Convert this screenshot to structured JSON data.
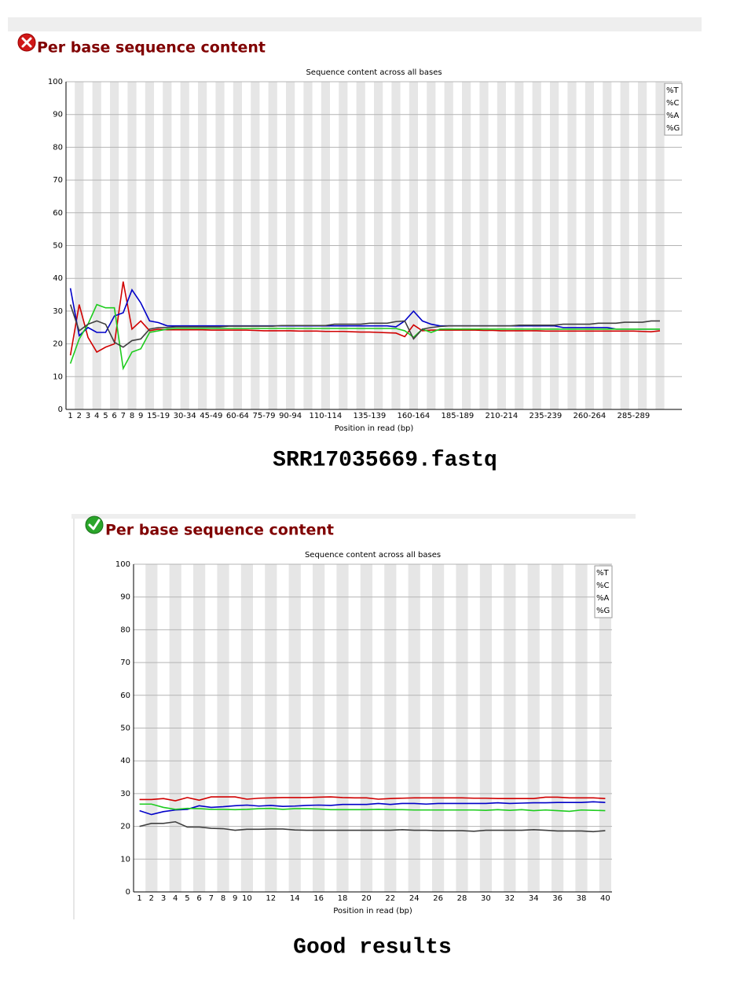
{
  "sections": [
    {
      "heading": "Per base sequence content",
      "caption": "SRR17035669.fastq"
    },
    {
      "heading": "Per base sequence content",
      "caption": "Good results"
    }
  ],
  "chart_data": [
    {
      "type": "line",
      "title": "Sequence content across all bases",
      "x_label": "Position in read (bp)",
      "categories": [
        "1",
        "2",
        "3",
        "4",
        "5",
        "6",
        "7",
        "8",
        "9",
        null,
        "15-19",
        null,
        null,
        "30-34",
        null,
        null,
        "45-49",
        null,
        null,
        "60-64",
        null,
        null,
        "75-79",
        null,
        null,
        "90-94",
        null,
        null,
        null,
        "110-114",
        null,
        null,
        null,
        null,
        "135-139",
        null,
        null,
        null,
        null,
        "160-164",
        null,
        null,
        null,
        null,
        "185-189",
        null,
        null,
        null,
        null,
        "210-214",
        null,
        null,
        null,
        null,
        "235-239",
        null,
        null,
        null,
        null,
        "260-264",
        null,
        null,
        null,
        null,
        "285-289",
        null,
        null,
        null
      ],
      "series": [
        {
          "name": "%T",
          "color": "#d00000",
          "values": [
            16.5,
            32,
            22,
            17.5,
            19,
            20,
            39,
            24.5,
            27,
            24,
            24.5,
            24.3,
            24.3,
            24.3,
            24.3,
            24.3,
            24.2,
            24.2,
            24.2,
            24.2,
            24.2,
            24.1,
            24,
            24,
            24,
            24,
            23.9,
            23.9,
            23.9,
            23.8,
            23.8,
            23.8,
            23.7,
            23.6,
            23.6,
            23.5,
            23.4,
            23.3,
            22.2,
            25.8,
            24,
            24.2,
            24.2,
            24.2,
            24.2,
            24.2,
            24.2,
            24.1,
            24.1,
            24,
            24,
            24,
            24,
            24,
            23.9,
            23.9,
            23.9,
            23.9,
            23.9,
            23.9,
            23.9,
            23.9,
            23.9,
            23.9,
            23.9,
            23.8,
            23.7,
            24
          ]
        },
        {
          "name": "%C",
          "color": "#0000c8",
          "values": [
            37,
            22.5,
            25,
            23.5,
            23.5,
            28.5,
            29.5,
            36.5,
            32.5,
            27,
            26.5,
            25.5,
            25.5,
            25.5,
            25.5,
            25.5,
            25.5,
            25.5,
            25.5,
            25.5,
            25.5,
            25.5,
            25.5,
            25.5,
            25.5,
            25.5,
            25.5,
            25.5,
            25.5,
            25.5,
            25.5,
            25.5,
            25.5,
            25.5,
            25.5,
            25.5,
            25.5,
            25.2,
            27,
            30,
            27,
            26,
            25.5,
            25.5,
            25.5,
            25.5,
            25.5,
            25.5,
            25.5,
            25.5,
            25.5,
            25.5,
            25.5,
            25.5,
            25.5,
            25.5,
            25,
            25,
            25,
            25,
            25,
            25,
            24.5,
            24.5,
            24.5,
            24.5,
            24.5,
            24.5
          ]
        },
        {
          "name": "%A",
          "color": "#1ecc1e",
          "values": [
            14,
            21.5,
            26,
            32,
            31,
            31,
            12.5,
            17.5,
            18.5,
            23.5,
            24,
            24.5,
            24.7,
            24.7,
            24.7,
            24.7,
            24.7,
            24.7,
            24.7,
            24.7,
            24.7,
            24.7,
            24.7,
            24.7,
            24.7,
            24.7,
            24.7,
            24.7,
            24.7,
            24.7,
            24.7,
            24.7,
            24.7,
            24.7,
            24.7,
            24.7,
            24.7,
            24.7,
            24,
            22,
            24.5,
            23.5,
            24.5,
            24.5,
            24.5,
            24.5,
            24.5,
            24.5,
            24.5,
            24.5,
            24.5,
            24.5,
            24.5,
            24.5,
            24.5,
            24.5,
            24.5,
            24.5,
            24.5,
            24.5,
            24.5,
            24.5,
            24.5,
            24.5,
            24.5,
            24.5,
            24.5,
            24.5
          ]
        },
        {
          "name": "%G",
          "color": "#404040",
          "values": [
            32,
            24,
            26,
            27,
            26,
            20.5,
            19,
            21,
            21.5,
            24.5,
            25,
            25,
            25.2,
            25.2,
            25.2,
            25.2,
            25.2,
            25.2,
            25.4,
            25.4,
            25.4,
            25.4,
            25.4,
            25.4,
            25.6,
            25.6,
            25.6,
            25.6,
            25.6,
            25.6,
            26,
            26,
            26,
            26,
            26.3,
            26.3,
            26.3,
            26.8,
            27,
            21.5,
            24.5,
            25,
            25.3,
            25.5,
            25.5,
            25.5,
            25.5,
            25.5,
            25.5,
            25.5,
            25.5,
            25.7,
            25.7,
            25.7,
            25.7,
            25.7,
            26,
            26,
            26,
            26,
            26.3,
            26.3,
            26.3,
            26.6,
            26.6,
            26.6,
            27,
            27
          ]
        }
      ],
      "ylim": [
        0,
        100
      ],
      "yticks": [
        0,
        10,
        20,
        30,
        40,
        50,
        60,
        70,
        80,
        90,
        100
      ],
      "grid": true,
      "legend": "top-right"
    },
    {
      "type": "line",
      "title": "Sequence content across all bases",
      "x_label": "Position in read (bp)",
      "categories": [
        "1",
        "2",
        "3",
        "4",
        "5",
        "6",
        "7",
        "8",
        "9",
        "10",
        null,
        "12",
        null,
        "14",
        null,
        "16",
        null,
        "18",
        null,
        "20",
        null,
        "22",
        null,
        "24",
        null,
        "26",
        null,
        "28",
        null,
        "30",
        null,
        "32",
        null,
        "34",
        null,
        "36",
        null,
        "38",
        null,
        "40"
      ],
      "series": [
        {
          "name": "%T",
          "color": "#d00000",
          "values": [
            28.2,
            28.2,
            28.5,
            27.8,
            28.8,
            28,
            29,
            29,
            29,
            28.3,
            28.6,
            28.7,
            28.8,
            28.8,
            28.8,
            28.9,
            29,
            28.8,
            28.7,
            28.7,
            28.3,
            28.5,
            28.6,
            28.7,
            28.7,
            28.7,
            28.7,
            28.7,
            28.6,
            28.6,
            28.5,
            28.5,
            28.5,
            28.5,
            28.9,
            28.9,
            28.7,
            28.7,
            28.7,
            28.5
          ]
        },
        {
          "name": "%C",
          "color": "#0000c8",
          "values": [
            24.8,
            23.6,
            24.5,
            25,
            25.2,
            26.3,
            25.8,
            26,
            26.3,
            26.5,
            26.2,
            26.4,
            26.1,
            26.2,
            26.4,
            26.5,
            26.4,
            26.7,
            26.7,
            26.7,
            27,
            26.7,
            27,
            27,
            26.8,
            27,
            27,
            27,
            27,
            27,
            27.2,
            27,
            27.1,
            27.2,
            27.2,
            27.3,
            27.3,
            27.3,
            27.5,
            27.3
          ]
        },
        {
          "name": "%A",
          "color": "#1ecc1e",
          "values": [
            26.8,
            26.8,
            25.8,
            25.2,
            25.5,
            25.4,
            25.2,
            25.2,
            25.1,
            25.2,
            25.4,
            25.5,
            25.2,
            25.4,
            25.4,
            25.3,
            25.1,
            25.1,
            25.1,
            25.1,
            25.2,
            25.1,
            25.1,
            25,
            25,
            25,
            25,
            25,
            25,
            24.9,
            25.1,
            24.9,
            25.1,
            24.8,
            25,
            24.8,
            24.6,
            25,
            24.9,
            24.8
          ]
        },
        {
          "name": "%G",
          "color": "#404040",
          "values": [
            20,
            20.9,
            20.9,
            21.4,
            19.8,
            19.8,
            19.4,
            19.3,
            18.8,
            19.1,
            19.1,
            19.2,
            19.2,
            18.9,
            18.8,
            18.8,
            18.8,
            18.8,
            18.8,
            18.8,
            18.8,
            18.8,
            19,
            18.8,
            18.8,
            18.7,
            18.7,
            18.7,
            18.5,
            18.8,
            18.8,
            18.8,
            18.8,
            19,
            18.8,
            18.6,
            18.6,
            18.6,
            18.4,
            18.7
          ]
        }
      ],
      "ylim": [
        0,
        100
      ],
      "yticks": [
        0,
        10,
        20,
        30,
        40,
        50,
        60,
        70,
        80,
        90,
        100
      ],
      "grid": true,
      "legend": "top-right"
    }
  ]
}
